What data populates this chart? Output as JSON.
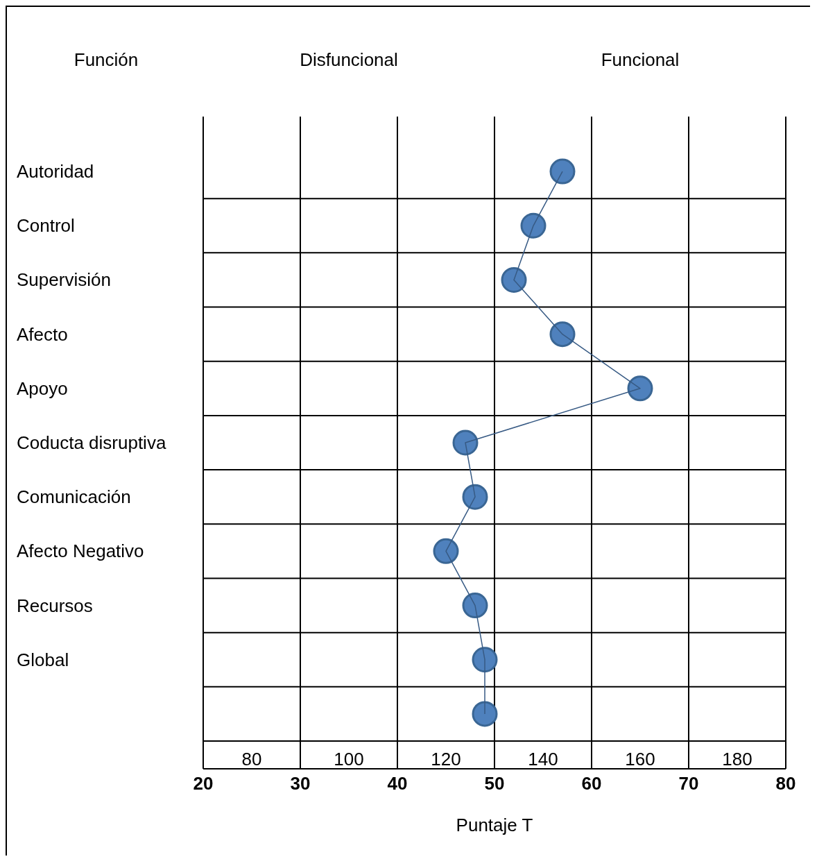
{
  "chart_data": {
    "type": "line",
    "orientation": "horizontal",
    "ylabel": "Función",
    "xlabel": "Puntaje T",
    "categories": [
      "Autoridad",
      "Control",
      "Supervisión",
      "Afecto",
      "Apoyo",
      "Coducta disruptiva",
      "Comunicación",
      "Afecto Negativo",
      "Recursos",
      "Global",
      null
    ],
    "series": [
      {
        "color": "#4f81bd",
        "values": [
          57,
          54,
          52,
          57,
          65,
          47,
          48,
          45,
          48,
          49,
          49
        ]
      }
    ],
    "marker": "circle",
    "grid": true,
    "xlim": [
      20,
      80
    ],
    "xticks": [
      20,
      30,
      40,
      50,
      60,
      70,
      80
    ],
    "x2lim": [
      70,
      190
    ],
    "x2ticks": [
      80,
      100,
      120,
      140,
      160,
      180
    ],
    "annotations": [
      "Disfuncional",
      "Funcional"
    ]
  }
}
